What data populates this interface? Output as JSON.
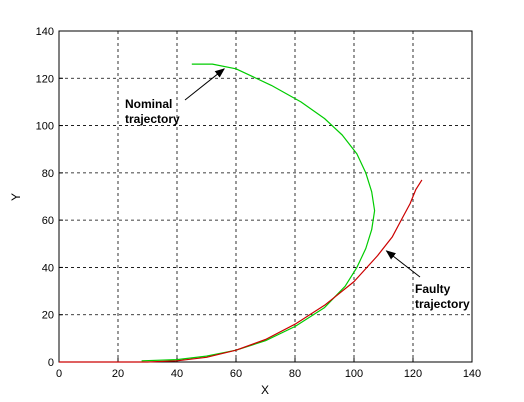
{
  "chart_data": {
    "type": "line",
    "title": "",
    "xlabel": "X",
    "ylabel": "Y",
    "xlim": [
      0,
      140
    ],
    "ylim": [
      0,
      140
    ],
    "xticks": [
      0,
      20,
      40,
      60,
      80,
      100,
      120,
      140
    ],
    "yticks": [
      0,
      20,
      40,
      60,
      80,
      100,
      120,
      140
    ],
    "grid": true,
    "series": [
      {
        "color": "#00cc00",
        "x": [
          28,
          40,
          50,
          60,
          70,
          80,
          90,
          97,
          101,
          104,
          106,
          107,
          106,
          104,
          101,
          96,
          90,
          82,
          72,
          60,
          52,
          45
        ],
        "y": [
          0.5,
          1,
          2.5,
          5,
          9,
          15,
          23,
          32,
          40,
          48,
          56,
          64,
          72,
          80,
          88,
          96,
          103,
          110,
          117,
          124,
          126,
          126
        ]
      },
      {
        "color": "#cc0000",
        "x": [
          0,
          20,
          30,
          40,
          50,
          60,
          70,
          80,
          90,
          100,
          108,
          113,
          116,
          119,
          121,
          123
        ],
        "y": [
          0,
          0,
          0,
          0.5,
          2,
          5,
          9.5,
          16,
          24,
          34,
          45,
          53,
          60,
          67,
          73,
          77
        ]
      }
    ],
    "annotations": [
      {
        "text_lines": [
          "Nominal",
          "trajectory"
        ],
        "arrow_to": [
          56,
          124
        ]
      },
      {
        "text_lines": [
          "Faulty",
          "trajectory"
        ],
        "arrow_to": [
          111,
          47
        ]
      }
    ]
  }
}
